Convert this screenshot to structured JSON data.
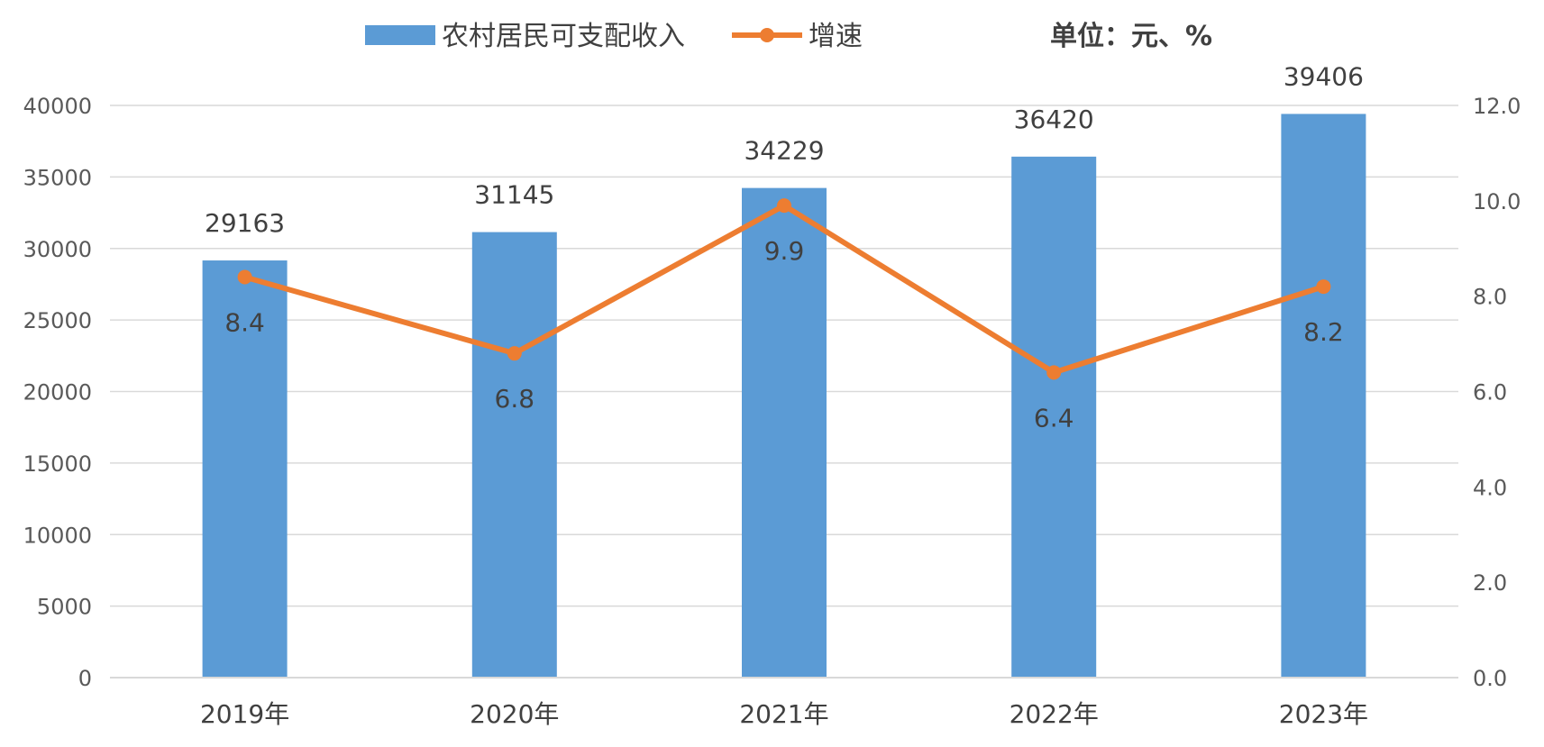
{
  "chart_data": {
    "type": "bar",
    "categories": [
      "2019年",
      "2020年",
      "2021年",
      "2022年",
      "2023年"
    ],
    "series": [
      {
        "name": "农村居民可支配收入",
        "type": "bar",
        "axis": "left",
        "values": [
          29163,
          31145,
          34229,
          36420,
          39406
        ]
      },
      {
        "name": "增速",
        "type": "line",
        "axis": "right",
        "values": [
          8.4,
          6.8,
          9.9,
          6.4,
          8.2
        ]
      }
    ],
    "unit_note": "单位：元、%",
    "y_left": {
      "min": 0,
      "max": 40000,
      "ticks": [
        "0",
        "5000",
        "10000",
        "15000",
        "20000",
        "25000",
        "30000",
        "35000",
        "40000"
      ]
    },
    "y_right": {
      "min": 0,
      "max": 12,
      "ticks": [
        "0.0",
        "2.0",
        "4.0",
        "6.0",
        "8.0",
        "10.0",
        "12.0"
      ]
    },
    "grid": true,
    "legend_position": "top",
    "colors": {
      "bar": "#5B9BD5",
      "line": "#ED7D31",
      "grid": "#D9D9D9"
    }
  }
}
